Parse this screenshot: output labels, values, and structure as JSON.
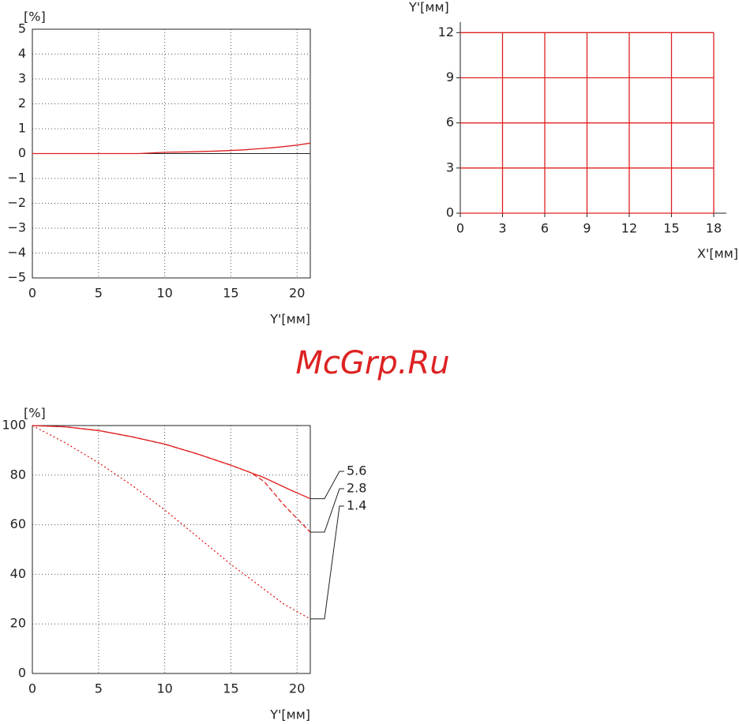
{
  "watermark": "McGrp.Ru",
  "chart_data": [
    {
      "type": "line",
      "ylabel": "[%]",
      "xlabel": "Y'[мм]",
      "grid": true,
      "frame": "box",
      "xlim": [
        0,
        21
      ],
      "ylim": [
        -5,
        5
      ],
      "xticks": [
        0,
        5,
        10,
        15,
        20
      ],
      "yticks": [
        {
          "value": -5,
          "label": "−5"
        },
        {
          "value": -4,
          "label": "−4"
        },
        {
          "value": -3,
          "label": "−3"
        },
        {
          "value": -2,
          "label": "−2"
        },
        {
          "value": -1,
          "label": "−1"
        },
        0,
        1,
        2,
        3,
        4,
        5
      ],
      "series": [
        {
          "color": "#e02020",
          "line_style": "solid",
          "x": [
            0,
            2,
            4,
            6,
            8,
            10,
            12,
            14,
            16,
            17,
            18,
            19,
            20,
            21
          ],
          "values": [
            0,
            0,
            0,
            0,
            0,
            0.05,
            0.07,
            0.1,
            0.15,
            0.19,
            0.23,
            0.28,
            0.34,
            0.42
          ]
        }
      ]
    },
    {
      "type": "line",
      "ylabel": "Y'[мм]",
      "xlabel": "X'[мм]",
      "grid": false,
      "frame": "axes",
      "xlim": [
        0,
        18.9
      ],
      "ylim": [
        0,
        12.7
      ],
      "xticks": [
        0,
        3,
        6,
        9,
        12,
        15,
        18
      ],
      "yticks": [
        0,
        3,
        6,
        9,
        12
      ],
      "series": [
        {
          "color": "#e02020",
          "line_style": "solid",
          "x": [
            0,
            18
          ],
          "values": [
            0,
            0
          ]
        },
        {
          "color": "#e02020",
          "line_style": "solid",
          "x": [
            0,
            18
          ],
          "values": [
            3,
            3
          ]
        },
        {
          "color": "#e02020",
          "line_style": "solid",
          "x": [
            0,
            18
          ],
          "values": [
            6,
            6
          ]
        },
        {
          "color": "#e02020",
          "line_style": "solid",
          "x": [
            0,
            18
          ],
          "values": [
            9,
            9
          ]
        },
        {
          "color": "#e02020",
          "line_style": "solid",
          "x": [
            0,
            18
          ],
          "values": [
            12,
            12
          ]
        },
        {
          "color": "#e02020",
          "line_style": "solid",
          "x": [
            3,
            3
          ],
          "values": [
            0,
            12
          ]
        },
        {
          "color": "#e02020",
          "line_style": "solid",
          "x": [
            6,
            6
          ],
          "values": [
            0,
            12
          ]
        },
        {
          "color": "#e02020",
          "line_style": "solid",
          "x": [
            9,
            9
          ],
          "values": [
            0,
            12
          ]
        },
        {
          "color": "#e02020",
          "line_style": "solid",
          "x": [
            12,
            12
          ],
          "values": [
            0,
            12
          ]
        },
        {
          "color": "#e02020",
          "line_style": "solid",
          "x": [
            15,
            15
          ],
          "values": [
            0,
            12
          ]
        },
        {
          "color": "#e02020",
          "line_style": "solid",
          "x": [
            18,
            18
          ],
          "values": [
            0,
            12
          ]
        }
      ]
    },
    {
      "type": "line",
      "ylabel": "[%]",
      "xlabel": "Y'[мм]",
      "grid": true,
      "frame": "box",
      "xlim": [
        0,
        21
      ],
      "ylim": [
        0,
        100
      ],
      "xticks": [
        0,
        5,
        10,
        15,
        20
      ],
      "yticks": [
        0,
        20,
        40,
        60,
        80,
        100
      ],
      "series": [
        {
          "name": "5.6",
          "color": "#e02020",
          "line_style": "solid",
          "x": [
            0,
            2.5,
            5,
            7.5,
            10,
            12.5,
            15,
            17.5,
            19.5,
            21
          ],
          "values": [
            100,
            99.5,
            98,
            95.5,
            92.5,
            88.5,
            84,
            79,
            74,
            70.5
          ]
        },
        {
          "name": "2.8",
          "color": "#e02020",
          "line_style": "dashed",
          "x": [
            0,
            2.5,
            5,
            7.5,
            10,
            12.5,
            15,
            16.5,
            17.5,
            19,
            21
          ],
          "values": [
            100,
            99.5,
            98,
            95.5,
            92.5,
            88.5,
            84,
            81,
            77.5,
            68,
            57
          ]
        },
        {
          "name": "1.4",
          "color": "#e02020",
          "line_style": "dotted",
          "x": [
            0,
            2.5,
            5,
            7.5,
            10,
            12.5,
            15,
            17.5,
            19,
            21
          ],
          "values": [
            100,
            93,
            85,
            76,
            66,
            55,
            44,
            34,
            28,
            22
          ]
        }
      ]
    }
  ]
}
